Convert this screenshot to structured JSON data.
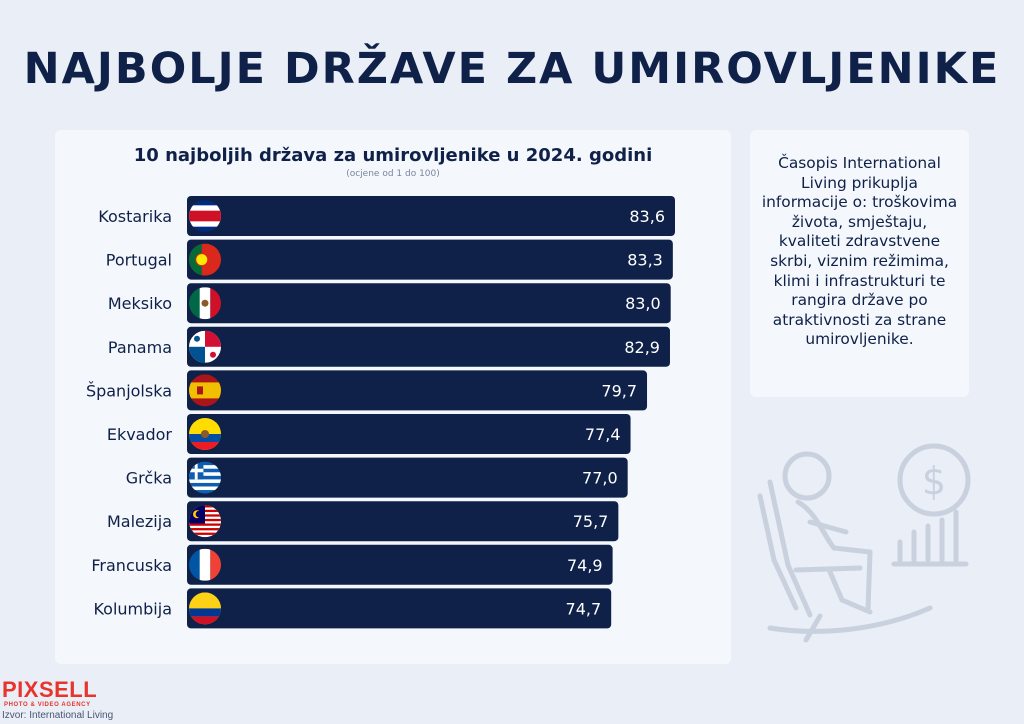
{
  "header": {
    "title": "NAJBOLJE DRŽAVE ZA UMIROVLJENIKE"
  },
  "chart_data": {
    "type": "bar",
    "orientation": "horizontal",
    "title": "10 najboljih država za umirovljenike u 2024. godini",
    "subtitle": "(ocjene od 1 do 100)",
    "categories": [
      "Kostarika",
      "Portugal",
      "Meksiko",
      "Panama",
      "Španjolska",
      "Ekvador",
      "Grčka",
      "Malezija",
      "Francuska",
      "Kolumbija"
    ],
    "values": [
      83.6,
      83.3,
      83.0,
      82.9,
      79.7,
      77.4,
      77.0,
      75.7,
      74.9,
      74.7
    ],
    "value_labels": [
      "83,6",
      "83,3",
      "83,0",
      "82,9",
      "79,7",
      "77,4",
      "77,0",
      "75,7",
      "74,9",
      "74,7"
    ],
    "flags": [
      "costa-rica-flag",
      "portugal-flag",
      "mexico-flag",
      "panama-flag",
      "spain-flag",
      "ecuador-flag",
      "greece-flag",
      "malaysia-flag",
      "france-flag",
      "colombia-flag"
    ],
    "bar_color": "#0f2148"
  },
  "info": {
    "text": "Časopis International Living prikuplja informacije o: troškovima života, smještaju, kvaliteti zdravstvene skrbi, viznim režimima, klimi i infrastrukturi te rangira države po atraktivnosti za strane umirovljenike."
  },
  "footer": {
    "logo": "PIXSELL",
    "logo_tagline": "PHOTO & VIDEO AGENCY",
    "source": "Izvor: International Living"
  },
  "colors": {
    "navy": "#0f2148",
    "background": "#e9eef7",
    "panel": "#f4f7fc",
    "logo_red": "#e8352b"
  }
}
